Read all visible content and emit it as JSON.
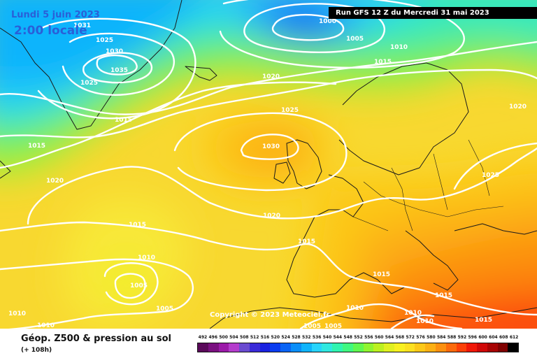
{
  "header": {
    "valid_date": "Lundi 5 juin 2023",
    "valid_time": "2:00 locale",
    "run_info": "Run GFS 12 Z du Mercredi 31 mai 2023"
  },
  "map": {
    "copyright": "Copyright © 2023 Meteociel.fr",
    "pressure_labels": [
      "1031",
      "1025",
      "1030",
      "1035",
      "1025",
      "1000",
      "1005",
      "1010",
      "1015",
      "1020",
      "1025",
      "1030",
      "1015",
      "1015",
      "1020",
      "1020",
      "1025",
      "1015",
      "1020",
      "1015",
      "1010",
      "1005",
      "1005",
      "1010",
      "1010",
      "1015",
      "1010",
      "1015",
      "1010",
      "1010",
      "1005",
      "1005",
      "1015"
    ]
  },
  "footer": {
    "title": "Géop. Z500 & pression au sol",
    "forecast_hours": "(+ 108h)"
  },
  "legend": {
    "values": [
      "492",
      "496",
      "500",
      "504",
      "508",
      "512",
      "516",
      "520",
      "524",
      "528",
      "532",
      "536",
      "540",
      "544",
      "548",
      "552",
      "556",
      "560",
      "564",
      "568",
      "572",
      "576",
      "580",
      "584",
      "588",
      "592",
      "596",
      "600",
      "604",
      "608",
      "612"
    ],
    "colors": [
      "#5a0a5a",
      "#7a1080",
      "#9b1aa8",
      "#b43ccc",
      "#6a4bd0",
      "#3a2ad8",
      "#1a22e0",
      "#0a3cf0",
      "#0a64f4",
      "#0a8ef8",
      "#10b4fc",
      "#28d4fc",
      "#30e8e0",
      "#30f4b0",
      "#40f880",
      "#60f850",
      "#90f430",
      "#bcf020",
      "#e0f020",
      "#f8f020",
      "#fce020",
      "#fcc818",
      "#fcb014",
      "#fc9010",
      "#fc6a0c",
      "#fc4008",
      "#f01808",
      "#d00808",
      "#a80404",
      "#800202",
      "#000000"
    ]
  }
}
